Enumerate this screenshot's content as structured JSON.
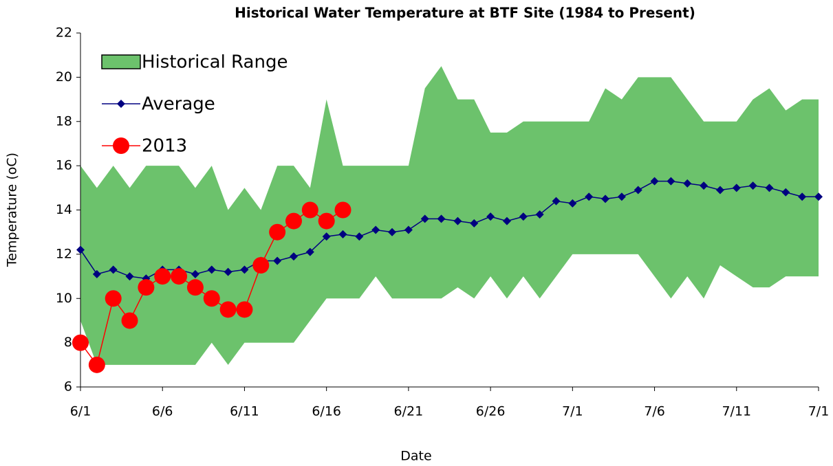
{
  "chart_data": {
    "type": "line",
    "title": "Historical Water Temperature at BTF Site (1984 to Present)",
    "x_label": "Date",
    "y_label": "Temperature (oC)",
    "categories": [
      "6/1",
      null,
      null,
      null,
      null,
      "6/6",
      null,
      null,
      null,
      null,
      "6/11",
      null,
      null,
      null,
      null,
      "6/16",
      null,
      null,
      null,
      null,
      "6/21",
      null,
      null,
      null,
      null,
      "6/26",
      null,
      null,
      null,
      null,
      "7/1",
      null,
      null,
      null,
      null,
      "7/6",
      null,
      null,
      null,
      null,
      "7/11",
      null,
      null,
      null,
      null,
      "7/1"
    ],
    "ylim": [
      6,
      22
    ],
    "yticks": [
      6,
      8,
      10,
      12,
      14,
      16,
      18,
      20,
      22
    ],
    "legend": "upper left",
    "series": [
      {
        "name": "Historical Range",
        "kind": "band",
        "color": "#6cc26c",
        "high": [
          16,
          15,
          16,
          15,
          16,
          16,
          16,
          15,
          16,
          14,
          15,
          14,
          16,
          16,
          15,
          19,
          16,
          16,
          16,
          16,
          16,
          19.5,
          20.5,
          19,
          19,
          17.5,
          17.5,
          18,
          18,
          18,
          18,
          18,
          19.5,
          19,
          20,
          20,
          20,
          19,
          18,
          18,
          18,
          19,
          19.5,
          18.5,
          19,
          19
        ],
        "low": [
          9,
          7,
          7,
          7,
          7,
          7,
          7,
          7,
          8,
          7,
          8,
          8,
          8,
          8,
          9,
          10,
          10,
          10,
          11,
          10,
          10,
          10,
          10,
          10.5,
          10,
          11,
          10,
          11,
          10,
          11,
          12,
          12,
          12,
          12,
          12,
          11,
          10,
          11,
          10,
          11.5,
          11,
          10.5,
          10.5,
          11,
          11,
          11
        ]
      },
      {
        "name": "Average",
        "kind": "diamond",
        "color": "#000080",
        "values": [
          12.2,
          11.1,
          11.3,
          11.0,
          10.9,
          11.3,
          11.3,
          11.1,
          11.3,
          11.2,
          11.3,
          11.7,
          11.7,
          11.9,
          12.1,
          12.8,
          12.9,
          12.8,
          13.1,
          13.0,
          13.1,
          13.6,
          13.6,
          13.5,
          13.4,
          13.7,
          13.5,
          13.7,
          13.8,
          14.4,
          14.3,
          14.6,
          14.5,
          14.6,
          14.9,
          15.3,
          15.3,
          15.2,
          15.1,
          14.9,
          15.0,
          15.1,
          15.0,
          14.8,
          14.6,
          14.6
        ]
      },
      {
        "name": "2013",
        "kind": "circle",
        "color": "#ff0000",
        "values": [
          8,
          7,
          10,
          9,
          10.5,
          11,
          11,
          10.5,
          10,
          9.5,
          9.5,
          11.5,
          13,
          13.5,
          14,
          13.5,
          14,
          null,
          null,
          null,
          null,
          null,
          null,
          null,
          null,
          null,
          null,
          null,
          null,
          null,
          null,
          null,
          null,
          null,
          null,
          null,
          null,
          null,
          null,
          null,
          null,
          null,
          null,
          null,
          null,
          null
        ]
      }
    ]
  }
}
